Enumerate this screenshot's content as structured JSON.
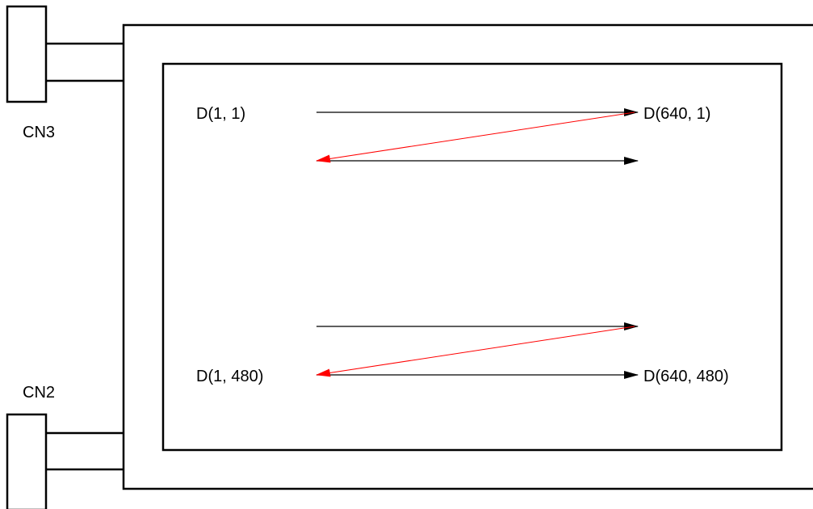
{
  "connectors": {
    "top": {
      "label": "CN3"
    },
    "bottom": {
      "label": "CN2"
    }
  },
  "pixels": {
    "top_left": "D(1, 1)",
    "top_right": "D(640, 1)",
    "bottom_left": "D(1, 480)",
    "bottom_right": "D(640, 480)"
  },
  "colors": {
    "outline": "#000000",
    "scan_arrow": "#000000",
    "return_arrow": "#ff0000",
    "background": "#ffffff"
  }
}
